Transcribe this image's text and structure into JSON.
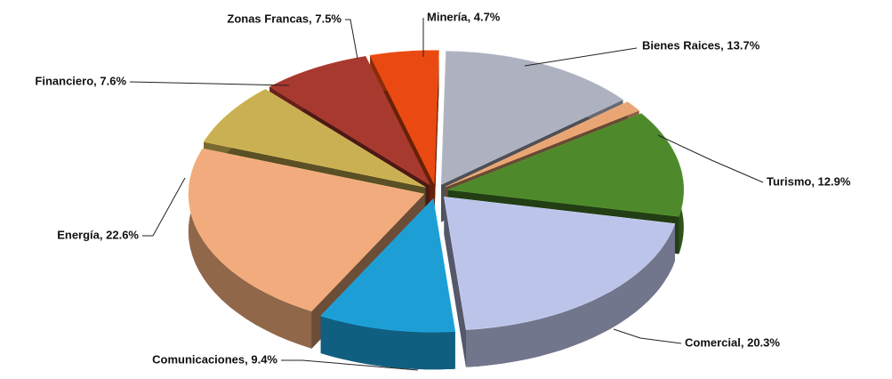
{
  "chart_data": {
    "type": "pie",
    "value_labels": [
      "Bienes Raices, 13.7%",
      null,
      "Turismo, 12.9%",
      "Comercial, 20.3%",
      "Comunicaciones, 9.4%",
      "Energía, 22.6%",
      "Financiero, 7.6%",
      "Zonas Francas, 7.5%",
      "Minería, 4.7%"
    ],
    "values": [
      13.7,
      1.3,
      12.9,
      20.3,
      9.4,
      22.6,
      7.6,
      7.5,
      4.7
    ],
    "colors": [
      "#aeb1bf",
      "#e9a574",
      "#4e8a2c",
      "#bcc4ea",
      "#1d9fd6",
      "#f1ab7c",
      "#c9b052",
      "#a8392f",
      "#ea4a12"
    ]
  }
}
